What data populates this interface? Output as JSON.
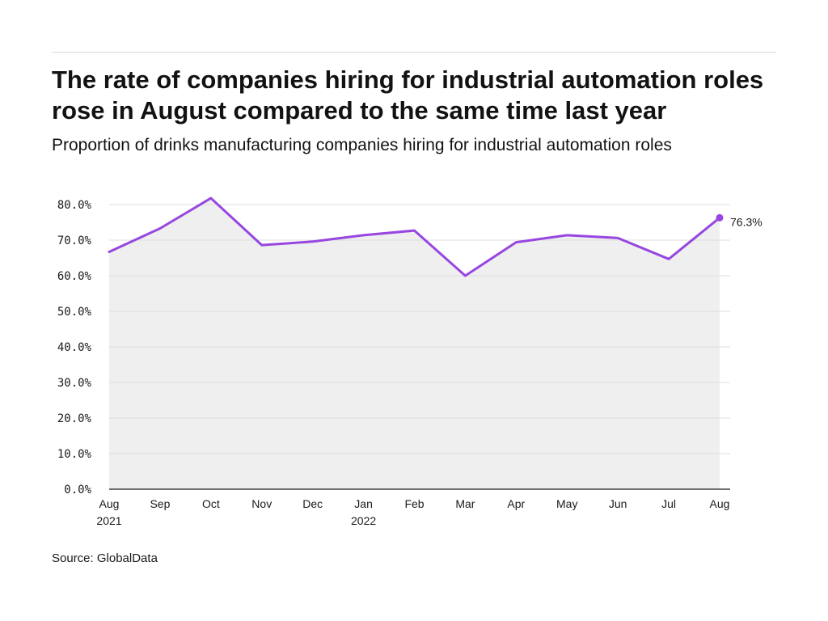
{
  "title": "The rate of companies hiring for industrial automation roles rose in August compared to the same time last year",
  "subtitle": "Proportion of drinks manufacturing companies hiring for industrial automation roles",
  "source": "Source: GlobalData",
  "chart_data": {
    "type": "line",
    "categories": [
      "Aug 2021",
      "Sep",
      "Oct",
      "Nov",
      "Dec",
      "Jan 2022",
      "Feb",
      "Mar",
      "Apr",
      "May",
      "Jun",
      "Jul",
      "Aug"
    ],
    "x_tick_labels": [
      [
        "Aug",
        "2021"
      ],
      [
        "Sep"
      ],
      [
        "Oct"
      ],
      [
        "Nov"
      ],
      [
        "Dec"
      ],
      [
        "Jan",
        "2022"
      ],
      [
        "Feb"
      ],
      [
        "Mar"
      ],
      [
        "Apr"
      ],
      [
        "May"
      ],
      [
        "Jun"
      ],
      [
        "Jul"
      ],
      [
        "Aug"
      ]
    ],
    "values": [
      66.7,
      73.3,
      81.8,
      68.6,
      69.6,
      71.4,
      72.7,
      60.0,
      69.4,
      71.4,
      70.6,
      64.7,
      76.3
    ],
    "y_ticks": [
      0,
      10,
      20,
      30,
      40,
      50,
      60,
      70,
      80
    ],
    "y_tick_labels": [
      "0.0%",
      "10.0%",
      "20.0%",
      "30.0%",
      "40.0%",
      "50.0%",
      "60.0%",
      "70.0%",
      "80.0%"
    ],
    "ylim": [
      0,
      80
    ],
    "last_point_label": "76.3%",
    "grid": true,
    "line_color": "#9747e0",
    "area_color": "#efefef"
  }
}
